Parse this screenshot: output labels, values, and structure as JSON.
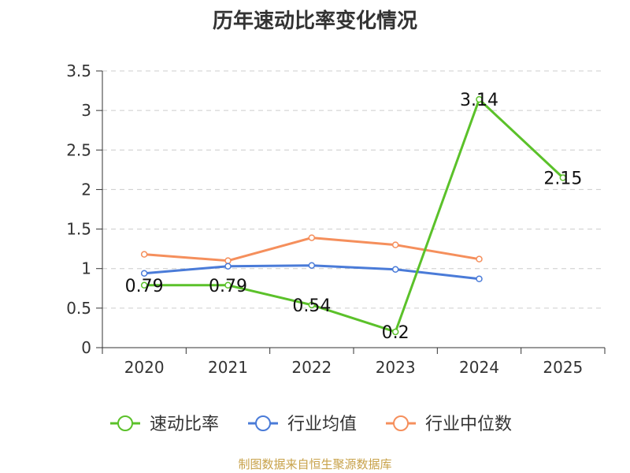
{
  "chart_data": {
    "type": "line",
    "title": "历年速动比率变化情况",
    "categories": [
      "2020",
      "2021",
      "2022",
      "2023",
      "2024",
      "2025"
    ],
    "ylim": [
      0,
      3.5
    ],
    "yticks": [
      0,
      0.5,
      1,
      1.5,
      2,
      2.5,
      3,
      3.5
    ],
    "ytick_labels": [
      "0",
      "0.5",
      "1",
      "1.5",
      "2",
      "2.5",
      "3",
      "3.5"
    ],
    "xlabel": "",
    "ylabel": "",
    "grid": true,
    "legend_position": "bottom",
    "series": [
      {
        "name": "速动比率",
        "color": "#5bc12a",
        "values": [
          0.79,
          0.79,
          0.54,
          0.2,
          3.14,
          2.15
        ],
        "labels": [
          "0.79",
          "0.79",
          "0.54",
          "0.2",
          "3.14",
          "2.15"
        ]
      },
      {
        "name": "行业均值",
        "color": "#4a7bd8",
        "values": [
          0.94,
          1.03,
          1.04,
          0.99,
          0.87,
          null
        ]
      },
      {
        "name": "行业中位数",
        "color": "#f58f5c",
        "values": [
          1.18,
          1.1,
          1.39,
          1.3,
          1.12,
          null
        ]
      }
    ]
  },
  "source": "制图数据来自恒生聚源数据库"
}
